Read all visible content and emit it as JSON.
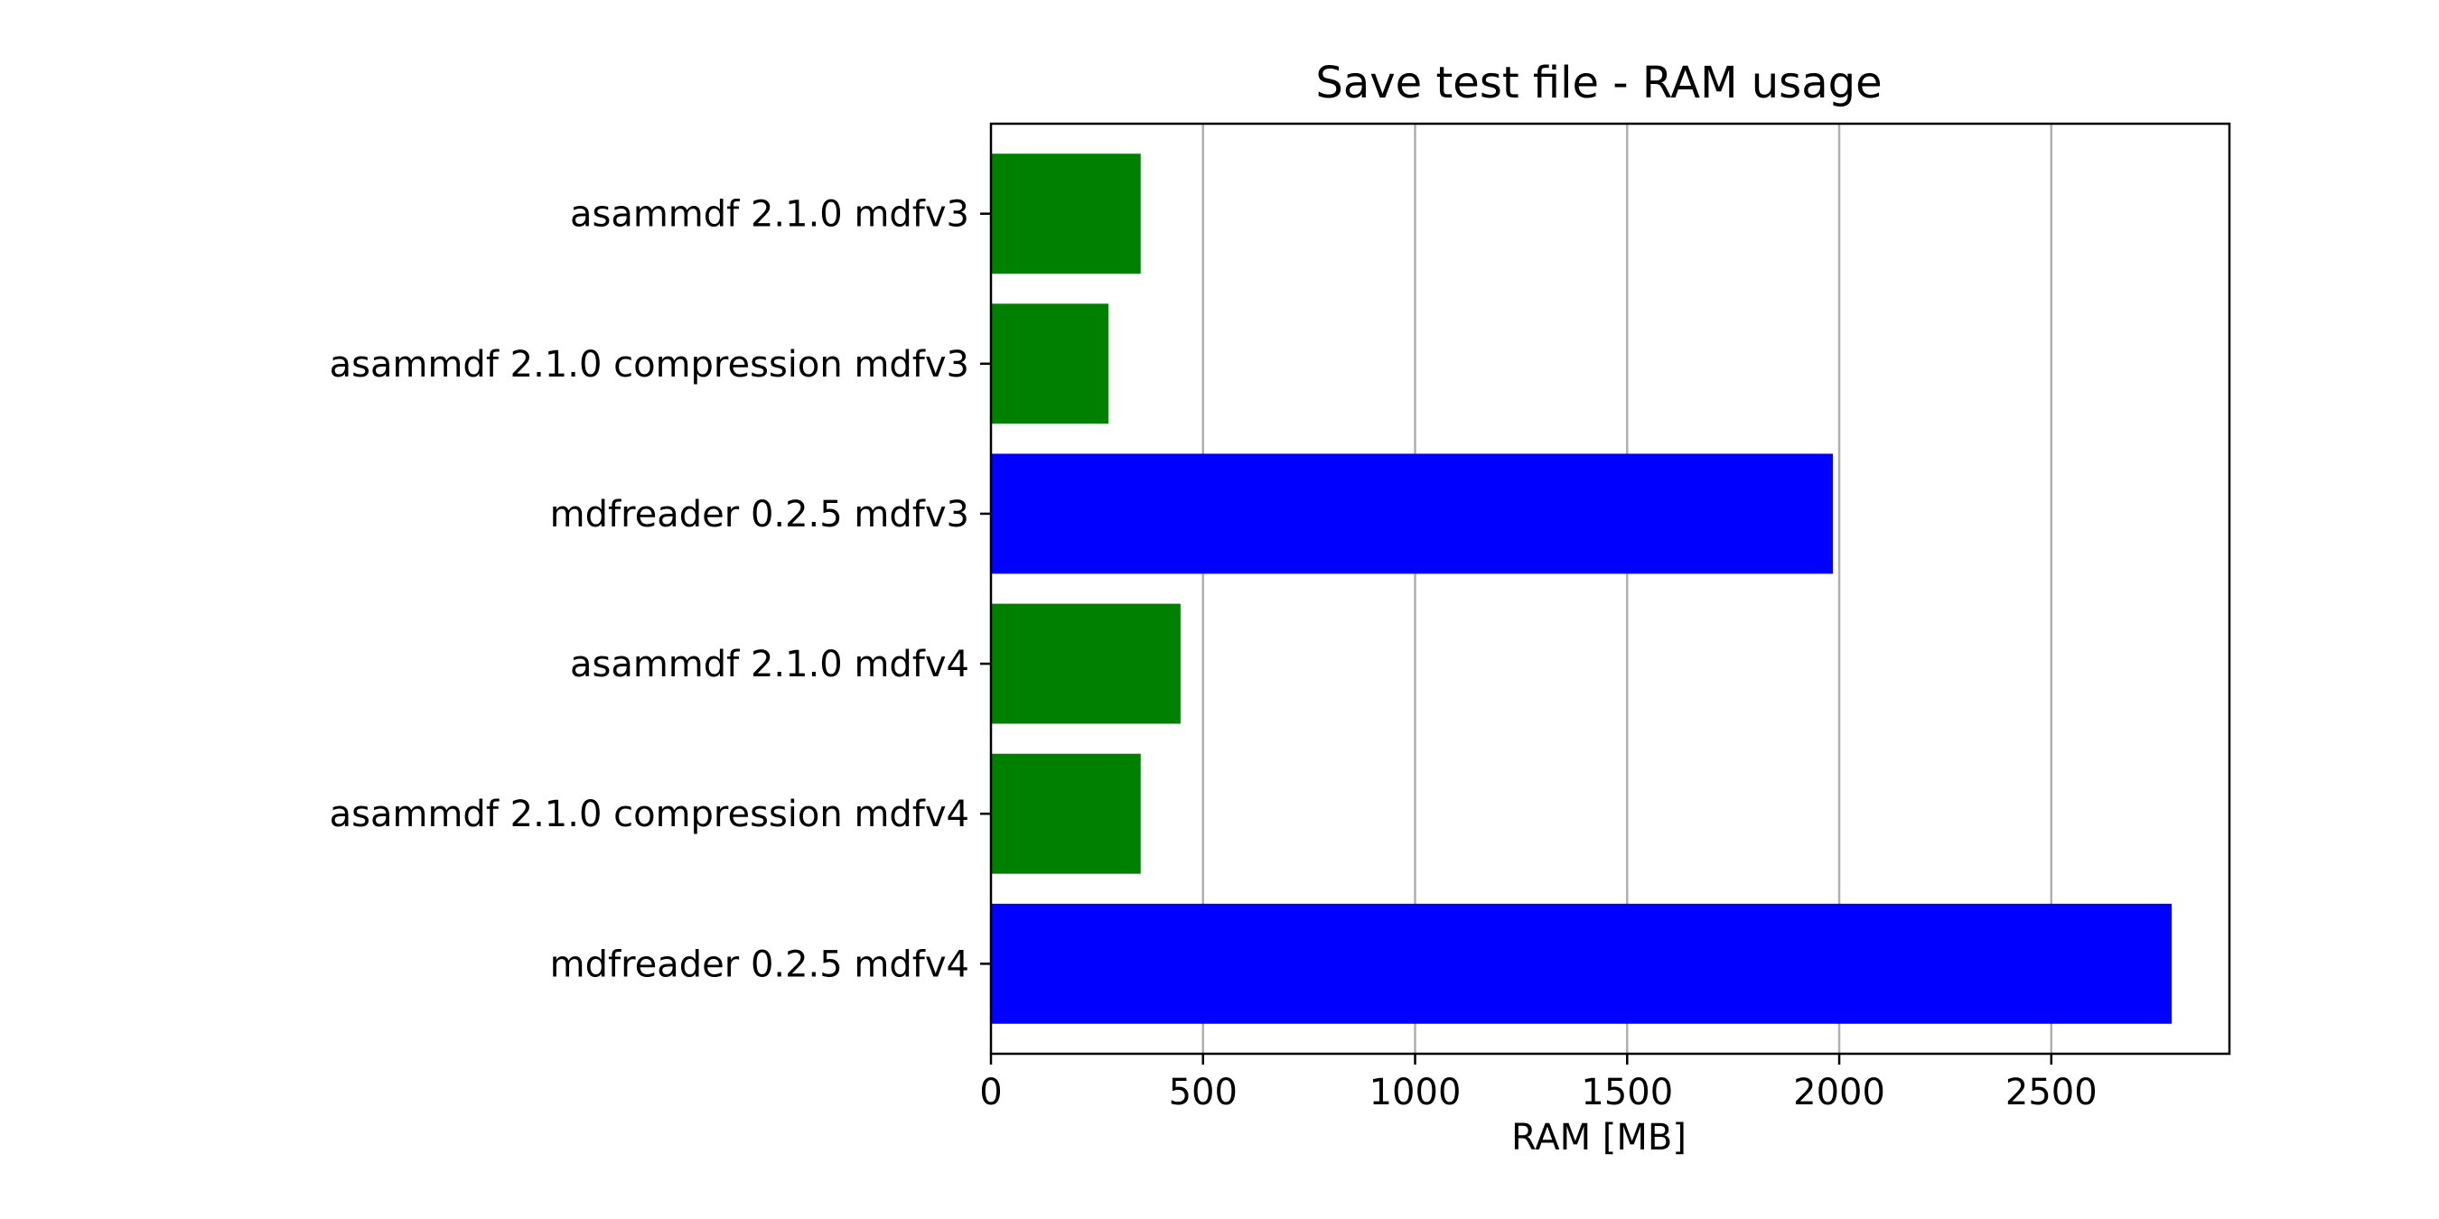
{
  "chart_data": {
    "type": "bar",
    "orientation": "horizontal",
    "title": "Save test file - RAM usage",
    "xlabel": "RAM [MB]",
    "ylabel": "",
    "xlim": [
      0,
      2920
    ],
    "xticks": [
      0,
      500,
      1000,
      1500,
      2000,
      2500
    ],
    "grid": {
      "x": true,
      "y": false
    },
    "categories": [
      "asammdf 2.1.0 mdfv3",
      "asammdf 2.1.0 compression mdfv3",
      "mdfreader 0.2.5 mdfv3",
      "asammdf 2.1.0 mdfv4",
      "asammdf 2.1.0 compression mdfv4",
      "mdfreader 0.2.5 mdfv4"
    ],
    "values": [
      353,
      277,
      1985,
      447,
      353,
      2784
    ],
    "colors": [
      "#008000",
      "#008000",
      "#0000ff",
      "#008000",
      "#008000",
      "#0000ff"
    ]
  }
}
